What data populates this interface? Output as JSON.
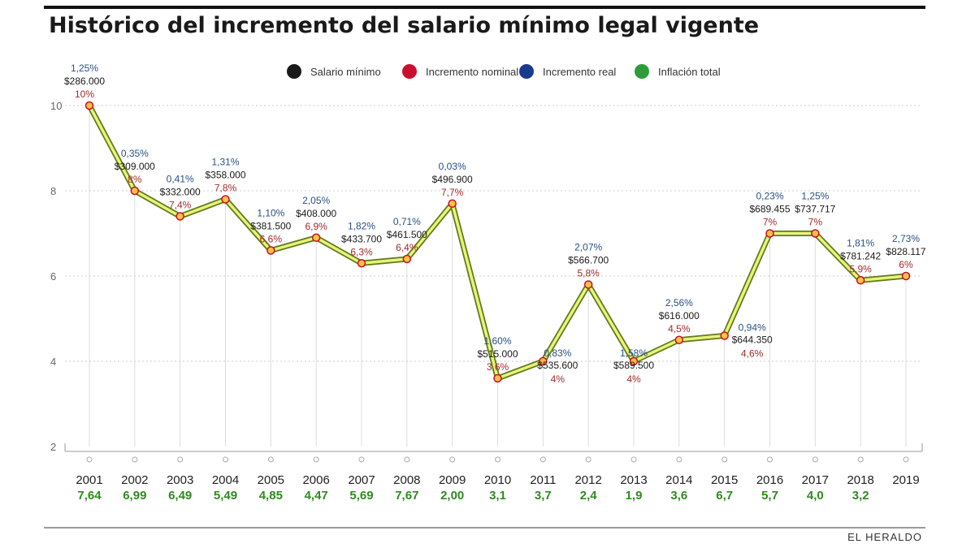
{
  "title": "Histórico del incremento del salario mínimo legal vigente",
  "source": "EL HERALDO",
  "legend": [
    {
      "label": "Salario mínimo",
      "color": "#1a1a1a"
    },
    {
      "label": "Incremento nominal",
      "color": "#c8102e"
    },
    {
      "label": "Incremento real",
      "color": "#1a3a8f"
    },
    {
      "label": "Inflación total",
      "color": "#2e9b3a"
    }
  ],
  "colors": {
    "line_outer": "#5f7a1a",
    "line_inner": "#e9f27a",
    "marker_fill": "#f6c243",
    "marker_stroke": "#c8102e",
    "grid": "#cccccc"
  },
  "chart_data": {
    "type": "line",
    "title": "Histórico del incremento del salario mínimo legal vigente",
    "xlabel": "",
    "ylabel": "",
    "ylim": [
      2,
      10
    ],
    "yticks": [
      2,
      4,
      6,
      8,
      10
    ],
    "grid": true,
    "legend_position": "top",
    "categories": [
      "2001",
      "2002",
      "2003",
      "2004",
      "2005",
      "2006",
      "2007",
      "2008",
      "2009",
      "2010",
      "2011",
      "2012",
      "2013",
      "2014",
      "2015",
      "2016",
      "2017",
      "2018",
      "2019"
    ],
    "series": [
      {
        "name": "Incremento nominal",
        "values": [
          10,
          8,
          7.4,
          7.8,
          6.6,
          6.9,
          6.3,
          6.4,
          7.7,
          3.6,
          4,
          5.8,
          4,
          4.5,
          4.6,
          7,
          7,
          5.9,
          6
        ],
        "labels": [
          "10%",
          "8%",
          "7,4%",
          "7,8%",
          "6,6%",
          "6,9%",
          "6,3%",
          "6,4%",
          "7,7%",
          "3,6%",
          "4%",
          "5,8%",
          "4%",
          "4,5%",
          "4,6%",
          "7%",
          "7%",
          "5,9%",
          "6%"
        ]
      }
    ],
    "salario_minimo": [
      "$286.000",
      "$309.000",
      "$332.000",
      "$358.000",
      "$381.500",
      "$408.000",
      "$433.700",
      "$461.500",
      "$496.900",
      "$515.000",
      "$535.600",
      "$566.700",
      "$589.500",
      "$616.000",
      "$644.350",
      "$689.455",
      "$737.717",
      "$781.242",
      "$828.117"
    ],
    "incremento_real": [
      "1,25%",
      "0,35%",
      "0,41%",
      "1,31%",
      "1,10%",
      "2,05%",
      "1,82%",
      "0,71%",
      "0,03%",
      "1,60%",
      "0,83%",
      "2,07%",
      "1,58%",
      "2,56%",
      "0,94%",
      "0,23%",
      "1,25%",
      "1,81%",
      "2,73%"
    ],
    "inflacion_total": [
      "7,64",
      "6,99",
      "6,49",
      "5,49",
      "4,85",
      "4,47",
      "5,69",
      "7,67",
      "2,00",
      "3,1",
      "3,7",
      "2,4",
      "1,9",
      "3,6",
      "6,7",
      "5,7",
      "4,0",
      "3,2",
      ""
    ]
  }
}
